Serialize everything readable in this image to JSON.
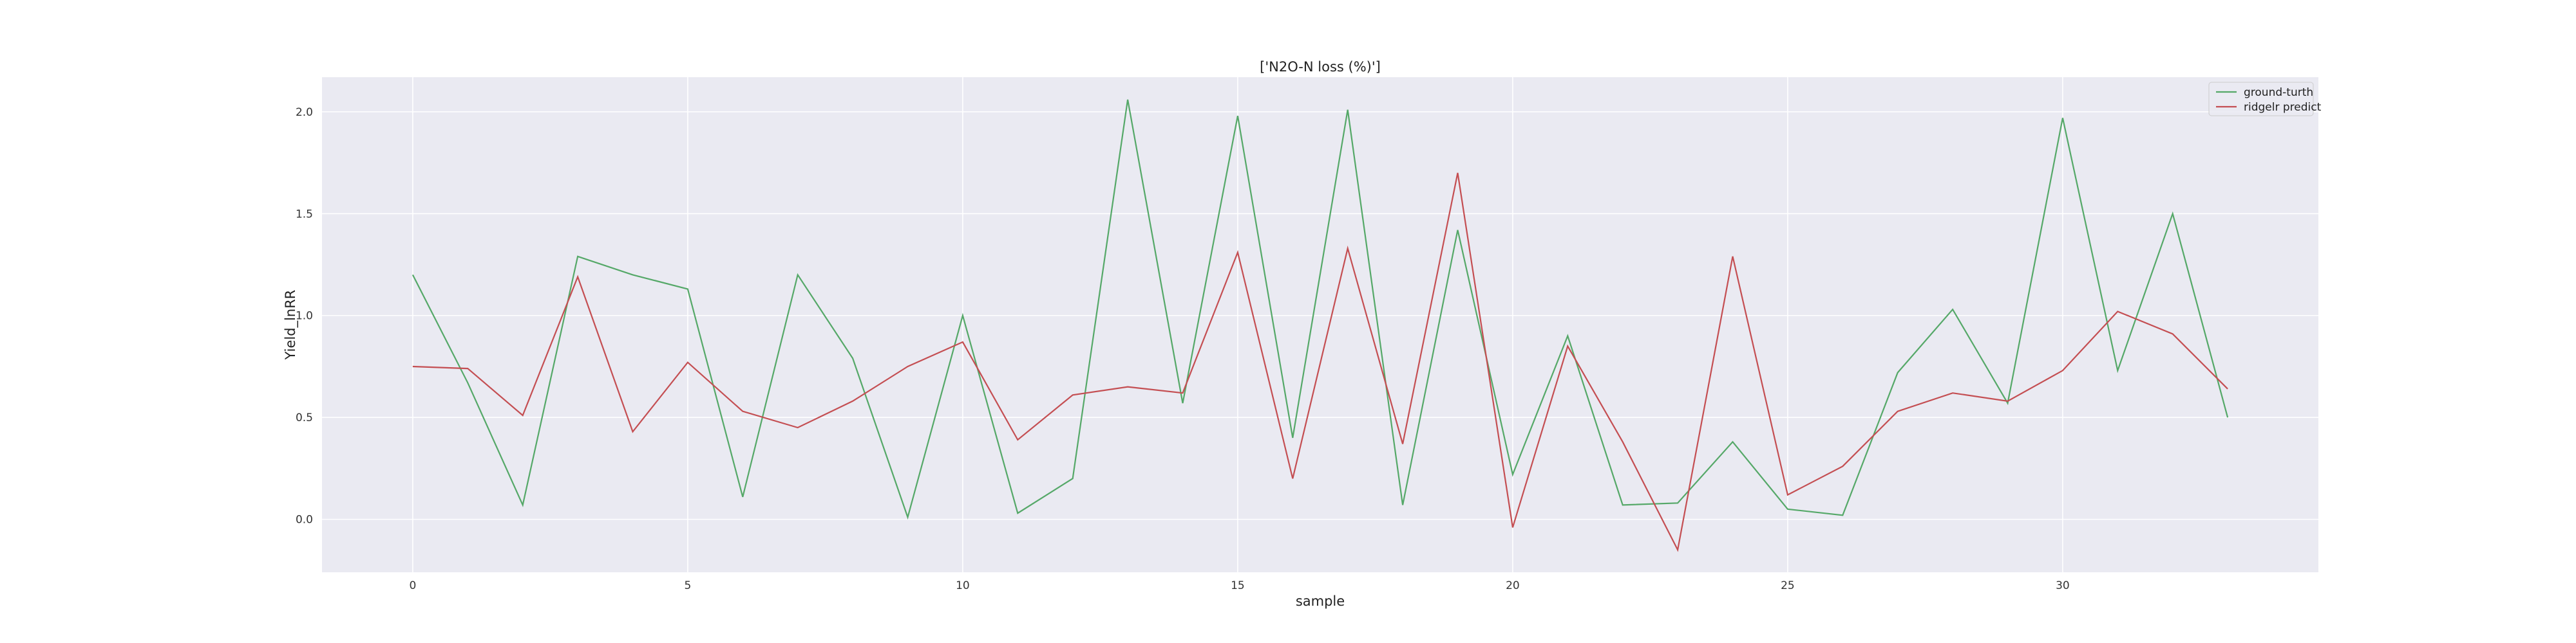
{
  "chart_data": {
    "type": "line",
    "title": "['N2O-N loss (%)']",
    "xlabel": "sample",
    "ylabel": "Yield_lnRR",
    "xlim": [
      -1.65,
      34.65
    ],
    "ylim": [
      -0.26,
      2.17
    ],
    "xticks": [
      0,
      5,
      10,
      15,
      20,
      25,
      30
    ],
    "yticks": [
      0.0,
      0.5,
      1.0,
      1.5,
      2.0
    ],
    "xtick_labels": [
      "0",
      "5",
      "10",
      "15",
      "20",
      "25",
      "30"
    ],
    "ytick_labels": [
      "0.0",
      "0.5",
      "1.0",
      "1.5",
      "2.0"
    ],
    "grid": true,
    "legend_position": "top-right",
    "x": [
      0,
      1,
      2,
      3,
      4,
      5,
      6,
      7,
      8,
      9,
      10,
      11,
      12,
      13,
      14,
      15,
      16,
      17,
      18,
      19,
      20,
      21,
      22,
      23,
      24,
      25,
      26,
      27,
      28,
      29,
      30,
      31,
      32,
      33
    ],
    "series": [
      {
        "name": "ground-turth",
        "color": "#55a868",
        "values": [
          1.2,
          0.67,
          0.07,
          1.29,
          1.2,
          1.13,
          0.11,
          1.2,
          0.79,
          0.01,
          1.0,
          0.03,
          0.2,
          2.06,
          0.57,
          1.98,
          0.4,
          2.01,
          0.07,
          1.42,
          0.22,
          0.9,
          0.07,
          0.08,
          0.38,
          0.05,
          0.02,
          0.72,
          1.03,
          0.57,
          1.97,
          0.73,
          1.5,
          0.5
        ]
      },
      {
        "name": "ridgelr predict",
        "color": "#c44e52",
        "values": [
          0.75,
          0.74,
          0.51,
          1.19,
          0.43,
          0.77,
          0.53,
          0.45,
          0.58,
          0.75,
          0.87,
          0.39,
          0.61,
          0.65,
          0.62,
          1.31,
          0.2,
          1.33,
          0.37,
          1.7,
          -0.04,
          0.85,
          0.38,
          -0.15,
          1.29,
          0.12,
          0.26,
          0.53,
          0.62,
          0.58,
          0.73,
          1.02,
          0.91,
          0.64
        ]
      }
    ],
    "background": "#eaeaf2",
    "gridline_color": "#ffffff"
  }
}
